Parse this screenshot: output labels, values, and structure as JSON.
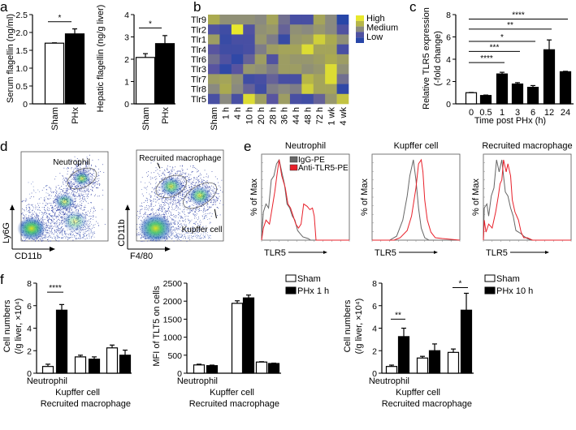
{
  "panels": [
    "a",
    "b",
    "c",
    "d",
    "e",
    "f"
  ],
  "colors": {
    "open_bar": "#ffffff",
    "filled_bar": "#000000",
    "igg": "#666666",
    "anti_tlr5": "#e8202a",
    "heat_low": "#2b46a6",
    "heat_mid": "#8a8a80",
    "heat_high": "#e6e62c"
  },
  "chart_data": [
    {
      "id": "a1",
      "type": "bar",
      "ylabel": "Serum flagellin (ng/ml)",
      "ylim": [
        0,
        2.5
      ],
      "yticks": [
        "0",
        "0.5",
        "1.0",
        "1.5",
        "2.0",
        "2.5"
      ],
      "categories": [
        "Sham",
        "PHx"
      ],
      "values": [
        1.7,
        1.96
      ],
      "errors": [
        0.01,
        0.14
      ],
      "fills": [
        "open",
        "filled"
      ],
      "sig": [
        {
          "from": 0,
          "to": 1,
          "y": 2.3,
          "label": "*"
        }
      ]
    },
    {
      "id": "a2",
      "type": "bar",
      "ylabel": "Hepatic flagellin (ng/g liver)",
      "ylim": [
        0,
        4
      ],
      "yticks": [
        "0",
        "1",
        "2",
        "3",
        "4"
      ],
      "categories": [
        "Sham",
        "PHx"
      ],
      "values": [
        2.08,
        2.7
      ],
      "errors": [
        0.17,
        0.36
      ],
      "fills": [
        "open",
        "filled"
      ],
      "sig": [
        {
          "from": 0,
          "to": 1,
          "y": 3.4,
          "label": "*"
        }
      ]
    },
    {
      "id": "b",
      "type": "heatmap",
      "rows": [
        "Tlr9",
        "Tlr2",
        "Tlr1",
        "Tlr4",
        "Tlr6",
        "Tlr3",
        "Tlr7",
        "Tlr8",
        "Tlr5"
      ],
      "columns": [
        "Sham",
        "1 h",
        "4 h",
        "10 h",
        "20 h",
        "28 h",
        "36 h",
        "44 h",
        "48 h",
        "72 h",
        "1 wk",
        "4 wk"
      ],
      "values": [
        [
          0.75,
          0.55,
          0.55,
          0.55,
          0.5,
          0.7,
          0.4,
          0.2,
          0.2,
          0.7,
          0.5,
          0.0
        ],
        [
          0.25,
          0.15,
          1.0,
          0.25,
          0.55,
          0.6,
          0.35,
          0.55,
          0.5,
          0.6,
          0.5,
          0.25
        ],
        [
          0.65,
          0.1,
          0.2,
          0.2,
          0.6,
          0.45,
          0.1,
          0.6,
          0.65,
          0.9,
          0.75,
          0.55
        ],
        [
          0.3,
          0.15,
          0.15,
          0.2,
          0.45,
          0.65,
          0.7,
          0.7,
          0.95,
          0.7,
          0.7,
          0.2
        ],
        [
          0.4,
          0.25,
          0.05,
          0.35,
          0.65,
          0.25,
          0.65,
          0.6,
          0.6,
          0.65,
          0.75,
          0.65
        ],
        [
          0.3,
          0.05,
          0.3,
          0.6,
          0.55,
          0.45,
          0.65,
          0.65,
          0.55,
          0.6,
          0.95,
          0.55
        ],
        [
          0.65,
          0.7,
          0.55,
          0.15,
          0.2,
          0.35,
          0.2,
          0.2,
          0.8,
          0.7,
          0.95,
          0.4
        ],
        [
          0.5,
          0.75,
          0.5,
          0.35,
          0.15,
          0.45,
          0.5,
          0.45,
          0.9,
          0.7,
          0.7,
          0.05
        ],
        [
          0.2,
          0.5,
          0.2,
          0.95,
          0.65,
          0.3,
          0.65,
          0.2,
          0.15,
          0.35,
          0.6,
          0.85
        ]
      ],
      "legend": [
        "High",
        "Medium",
        "Low"
      ]
    },
    {
      "id": "c",
      "type": "bar",
      "ylabel": [
        "Relative TLR5 expression",
        "(-fold change)"
      ],
      "xlabel": "Time post PHx (h)",
      "ylim": [
        0,
        8
      ],
      "yticks": [
        "0",
        "2",
        "4",
        "6",
        "8"
      ],
      "categories": [
        "0",
        "0.5",
        "1",
        "3",
        "6",
        "12",
        "24"
      ],
      "values": [
        1.0,
        0.75,
        2.68,
        1.78,
        1.48,
        4.85,
        2.88
      ],
      "errors": [
        0.02,
        0.04,
        0.15,
        0.12,
        0.16,
        0.88,
        0.04
      ],
      "fills": [
        "open",
        "filled",
        "filled",
        "filled",
        "filled",
        "filled",
        "filled"
      ],
      "sig": [
        {
          "from": 0,
          "to": 2,
          "y": 3.7,
          "label": "****"
        },
        {
          "from": 0,
          "to": 3,
          "y": 4.7,
          "label": "***"
        },
        {
          "from": 0,
          "to": 4,
          "y": 5.6,
          "label": "*"
        },
        {
          "from": 0,
          "to": 5,
          "y": 6.7,
          "label": "**"
        },
        {
          "from": 0,
          "to": 6,
          "y": 7.6,
          "label": "****"
        }
      ]
    },
    {
      "id": "d1",
      "type": "scatter",
      "xlabel": "CD11b",
      "ylabel": "Ly6G",
      "gates": [
        "Neutrophil"
      ],
      "populations": [
        {
          "x": 12,
          "y": 14,
          "spread": 11,
          "density": 1.0
        },
        {
          "x": 50,
          "y": 44,
          "spread": 8,
          "density": 0.6
        },
        {
          "x": 62,
          "y": 22,
          "spread": 10,
          "density": 0.45
        },
        {
          "x": 70,
          "y": 70,
          "spread": 7,
          "density": 0.7
        }
      ]
    },
    {
      "id": "d2",
      "type": "scatter",
      "xlabel": "F4/80",
      "ylabel": "CD11b",
      "gates": [
        "Recruited macrophage",
        "Kupffer cell"
      ],
      "populations": [
        {
          "x": 22,
          "y": 14,
          "spread": 13,
          "density": 1.0
        },
        {
          "x": 40,
          "y": 60,
          "spread": 9,
          "density": 0.75
        },
        {
          "x": 73,
          "y": 50,
          "spread": 9,
          "density": 0.75
        }
      ]
    },
    {
      "id": "e",
      "type": "line",
      "xlabel": "TLR5",
      "ylabel": "% of Max",
      "legend": [
        "IgG-PE",
        "Anti-TLR5-PE"
      ],
      "panels": [
        {
          "title": "Neutrophil",
          "igg": [
            [
              0,
              5
            ],
            [
              2,
              35
            ],
            [
              5,
              45
            ],
            [
              8,
              40
            ],
            [
              11,
              75
            ],
            [
              14,
              80
            ],
            [
              17,
              95
            ],
            [
              20,
              100
            ],
            [
              23,
              85
            ],
            [
              26,
              70
            ],
            [
              29,
              45
            ],
            [
              32,
              40
            ],
            [
              35,
              30
            ],
            [
              38,
              25
            ],
            [
              41,
              12
            ],
            [
              44,
              8
            ],
            [
              47,
              4
            ],
            [
              50,
              3
            ],
            [
              53,
              2
            ],
            [
              56,
              0
            ],
            [
              100,
              0
            ]
          ],
          "anti": [
            [
              0,
              0
            ],
            [
              2,
              15
            ],
            [
              5,
              25
            ],
            [
              9,
              20
            ],
            [
              12,
              40
            ],
            [
              15,
              60
            ],
            [
              18,
              85
            ],
            [
              20,
              100
            ],
            [
              23,
              80
            ],
            [
              27,
              65
            ],
            [
              30,
              45
            ],
            [
              33,
              40
            ],
            [
              36,
              30
            ],
            [
              39,
              20
            ],
            [
              42,
              15
            ],
            [
              45,
              20
            ],
            [
              48,
              45
            ],
            [
              52,
              42
            ],
            [
              55,
              38
            ],
            [
              58,
              40
            ],
            [
              60,
              30
            ],
            [
              62,
              0
            ],
            [
              100,
              0
            ]
          ]
        },
        {
          "title": "Kupffer cell",
          "igg": [
            [
              0,
              0
            ],
            [
              20,
              0
            ],
            [
              28,
              5
            ],
            [
              35,
              25
            ],
            [
              40,
              55
            ],
            [
              43,
              80
            ],
            [
              47,
              100
            ],
            [
              50,
              75
            ],
            [
              53,
              40
            ],
            [
              56,
              15
            ],
            [
              60,
              3
            ],
            [
              65,
              0
            ],
            [
              100,
              0
            ]
          ],
          "anti": [
            [
              0,
              0
            ],
            [
              25,
              0
            ],
            [
              32,
              3
            ],
            [
              40,
              12
            ],
            [
              45,
              30
            ],
            [
              50,
              65
            ],
            [
              53,
              95
            ],
            [
              56,
              100
            ],
            [
              58,
              85
            ],
            [
              60,
              50
            ],
            [
              63,
              25
            ],
            [
              67,
              10
            ],
            [
              72,
              3
            ],
            [
              80,
              2
            ],
            [
              100,
              0
            ]
          ]
        },
        {
          "title": "Recruited macrophage",
          "igg": [
            [
              0,
              0
            ],
            [
              1,
              40
            ],
            [
              4,
              45
            ],
            [
              6,
              30
            ],
            [
              9,
              55
            ],
            [
              12,
              65
            ],
            [
              15,
              100
            ],
            [
              18,
              85
            ],
            [
              21,
              100
            ],
            [
              23,
              80
            ],
            [
              25,
              60
            ],
            [
              28,
              55
            ],
            [
              31,
              40
            ],
            [
              34,
              30
            ],
            [
              37,
              12
            ],
            [
              40,
              10
            ],
            [
              43,
              8
            ],
            [
              46,
              5
            ],
            [
              50,
              2
            ],
            [
              55,
              0
            ],
            [
              100,
              0
            ]
          ],
          "anti": [
            [
              0,
              0
            ],
            [
              1,
              25
            ],
            [
              3,
              10
            ],
            [
              6,
              20
            ],
            [
              10,
              15
            ],
            [
              14,
              35
            ],
            [
              17,
              55
            ],
            [
              19,
              70
            ],
            [
              21,
              75
            ],
            [
              23,
              100
            ],
            [
              26,
              85
            ],
            [
              28,
              95
            ],
            [
              31,
              80
            ],
            [
              33,
              50
            ],
            [
              36,
              35
            ],
            [
              40,
              25
            ],
            [
              43,
              10
            ],
            [
              46,
              3
            ],
            [
              50,
              3
            ],
            [
              56,
              0
            ],
            [
              100,
              0
            ]
          ]
        }
      ]
    },
    {
      "id": "f1",
      "type": "grouped_bar",
      "ylabel": [
        "Cell numbers",
        "(/g liver, ×10⁴)"
      ],
      "ylim": [
        0,
        8
      ],
      "yticks": [
        "0",
        "2",
        "4",
        "6",
        "8"
      ],
      "categories": [
        "Neutrophil",
        "Kupffer cell",
        "Recruited macrophage"
      ],
      "series": [
        {
          "name": "Sham",
          "values": [
            0.6,
            1.45,
            2.25
          ],
          "errors": [
            0.2,
            0.15,
            0.25
          ]
        },
        {
          "name": "PHx 1 h",
          "values": [
            5.6,
            1.25,
            1.6
          ],
          "errors": [
            0.5,
            0.2,
            0.45
          ]
        }
      ],
      "sig": [
        {
          "group": 0,
          "y": 7.2,
          "label": "****"
        }
      ]
    },
    {
      "id": "f2",
      "type": "grouped_bar",
      "ylabel": [
        "MFI of TLT5 on cells"
      ],
      "ylim": [
        0,
        2500
      ],
      "yticks": [
        "0",
        "500",
        "1000",
        "1500",
        "2000",
        "2500"
      ],
      "categories": [
        "Neutrophil",
        "Kupffer cell",
        "Recruited macrophage"
      ],
      "series": [
        {
          "name": "Sham",
          "values": [
            230,
            1940,
            310
          ],
          "errors": [
            20,
            70,
            10
          ]
        },
        {
          "name": "PHx 1 h",
          "values": [
            210,
            2090,
            270
          ],
          "errors": [
            15,
            80,
            10
          ]
        }
      ],
      "legend": [
        "Sham",
        "PHx 1 h"
      ],
      "sig": []
    },
    {
      "id": "f3",
      "type": "grouped_bar",
      "ylabel": [
        "Cell numbers",
        "(/g liver, ×10⁴)"
      ],
      "ylim": [
        0,
        8
      ],
      "yticks": [
        "0",
        "2",
        "4",
        "6",
        "8"
      ],
      "categories": [
        "Neutrophil",
        "Kupffer cell",
        "Recruited macrophage"
      ],
      "series": [
        {
          "name": "Sham",
          "values": [
            0.6,
            1.35,
            1.85
          ],
          "errors": [
            0.12,
            0.15,
            0.3
          ]
        },
        {
          "name": "PHx 10 h",
          "values": [
            3.25,
            2.0,
            5.6
          ],
          "errors": [
            0.75,
            0.6,
            1.5
          ]
        }
      ],
      "legend": [
        "Sham",
        "PHx 10 h"
      ],
      "sig": [
        {
          "group": 0,
          "y": 4.8,
          "label": "**"
        },
        {
          "group": 2,
          "y": 7.6,
          "label": "*"
        }
      ]
    }
  ]
}
